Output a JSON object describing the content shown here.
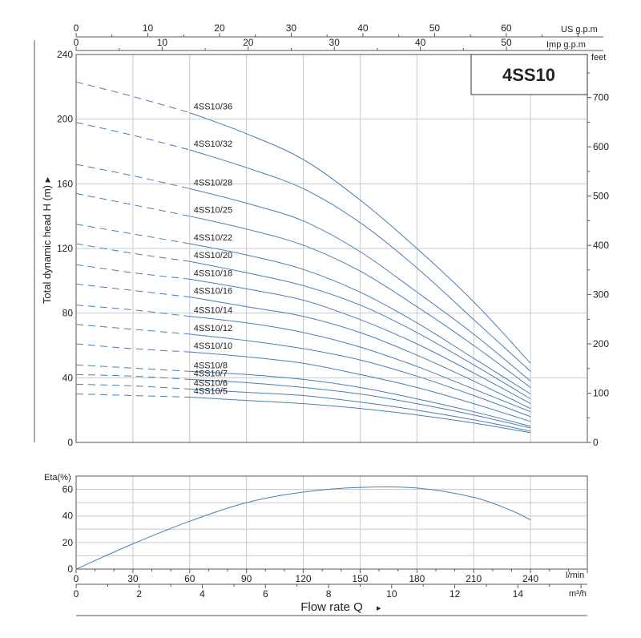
{
  "title": "4SS10",
  "colors": {
    "curve": "#4a7db3",
    "grid": "#c8c8c8",
    "axis": "#555555",
    "text": "#222222"
  },
  "axes": {
    "us_gpm_label": "US g.p.m",
    "imp_gpm_label": "Imp g.p.m",
    "feet_label": "feet",
    "head_label": "Total dynamic head H (m) ▸",
    "eta_label": "Eta(%)",
    "lmin_label": "l/min",
    "m3h_label": "m³/h",
    "flow_label": "Flow rate Q",
    "flow_arrow": "▸"
  },
  "chart_data": [
    {
      "type": "line",
      "id": "head",
      "title": "4SS10",
      "xlabel": "Flow rate Q",
      "ylabel": "Total dynamic head H (m)",
      "x_unit": "l/min",
      "xlim": [
        0,
        270
      ],
      "ylim": [
        0,
        240
      ],
      "x_ticks": [
        0,
        30,
        60,
        90,
        120,
        150,
        180,
        210,
        240
      ],
      "y_ticks": [
        0,
        40,
        80,
        120,
        160,
        200,
        240
      ],
      "grid": true,
      "secondary_axes": {
        "us_gpm": {
          "ticks": [
            0,
            10,
            20,
            30,
            40,
            50,
            60
          ],
          "max_at_270lmin": 71.3
        },
        "imp_gpm": {
          "ticks": [
            0,
            10,
            20,
            30,
            40,
            50
          ],
          "max_at_270lmin": 59.4
        },
        "feet": {
          "ticks": [
            0,
            100,
            200,
            300,
            400,
            500,
            600,
            700
          ],
          "max_at_240m": 787.4
        }
      },
      "dashed_until_x": 60,
      "series": [
        {
          "name": "4SS10/36",
          "x": [
            0,
            30,
            60,
            90,
            120,
            150,
            180,
            210,
            240
          ],
          "y": [
            223,
            214,
            204,
            191,
            175,
            150,
            120,
            87,
            49
          ]
        },
        {
          "name": "4SS10/32",
          "x": [
            0,
            30,
            60,
            90,
            120,
            150,
            180,
            210,
            240
          ],
          "y": [
            198,
            190,
            181,
            170,
            157,
            136,
            108,
            76,
            44
          ]
        },
        {
          "name": "4SS10/28",
          "x": [
            0,
            30,
            60,
            90,
            120,
            150,
            180,
            210,
            240
          ],
          "y": [
            172,
            165,
            157,
            148,
            137,
            118,
            93,
            67,
            38
          ]
        },
        {
          "name": "4SS10/25",
          "x": [
            0,
            30,
            60,
            90,
            120,
            150,
            180,
            210,
            240
          ],
          "y": [
            154,
            147,
            140,
            132,
            122,
            106,
            84,
            60,
            34
          ]
        },
        {
          "name": "4SS10/22",
          "x": [
            0,
            30,
            60,
            90,
            120,
            150,
            180,
            210,
            240
          ],
          "y": [
            135,
            129,
            123,
            116,
            107,
            93,
            74,
            52,
            30
          ]
        },
        {
          "name": "4SS10/20",
          "x": [
            0,
            30,
            60,
            90,
            120,
            150,
            180,
            210,
            240
          ],
          "y": [
            123,
            117,
            112,
            105,
            97,
            85,
            68,
            48,
            27
          ]
        },
        {
          "name": "4SS10/18",
          "x": [
            0,
            30,
            60,
            90,
            120,
            150,
            180,
            210,
            240
          ],
          "y": [
            110,
            105,
            101,
            95,
            88,
            76,
            61,
            43,
            24
          ]
        },
        {
          "name": "4SS10/16",
          "x": [
            0,
            30,
            60,
            90,
            120,
            150,
            180,
            210,
            240
          ],
          "y": [
            98,
            94,
            90,
            84,
            78,
            68,
            54,
            38,
            21
          ]
        },
        {
          "name": "4SS10/14",
          "x": [
            0,
            30,
            60,
            90,
            120,
            150,
            180,
            210,
            240
          ],
          "y": [
            85,
            82,
            78,
            74,
            68,
            59,
            47,
            33,
            19
          ]
        },
        {
          "name": "4SS10/12",
          "x": [
            0,
            30,
            60,
            90,
            120,
            150,
            180,
            210,
            240
          ],
          "y": [
            73,
            70,
            67,
            63,
            58,
            51,
            41,
            29,
            16
          ]
        },
        {
          "name": "4SS10/10",
          "x": [
            0,
            30,
            60,
            90,
            120,
            150,
            180,
            210,
            240
          ],
          "y": [
            61,
            58,
            56,
            53,
            49,
            42,
            34,
            24,
            13
          ]
        },
        {
          "name": "4SS10/8",
          "x": [
            0,
            30,
            60,
            90,
            120,
            150,
            180,
            210,
            240
          ],
          "y": [
            48,
            46,
            44,
            42,
            39,
            34,
            27,
            19,
            10
          ]
        },
        {
          "name": "4SS10/7",
          "x": [
            0,
            30,
            60,
            90,
            120,
            150,
            180,
            210,
            240
          ],
          "y": [
            42,
            41,
            39,
            37,
            34,
            30,
            24,
            17,
            9
          ]
        },
        {
          "name": "4SS10/6",
          "x": [
            0,
            30,
            60,
            90,
            120,
            150,
            180,
            210,
            240
          ],
          "y": [
            36,
            35,
            33,
            31,
            29,
            25,
            20,
            14,
            7
          ]
        },
        {
          "name": "4SS10/5",
          "x": [
            0,
            30,
            60,
            90,
            120,
            150,
            180,
            210,
            240
          ],
          "y": [
            30,
            29,
            28,
            26,
            24,
            21,
            17,
            12,
            6
          ]
        }
      ]
    },
    {
      "type": "line",
      "id": "efficiency",
      "ylabel": "Eta(%)",
      "xlabel": "Flow rate Q",
      "xlim": [
        0,
        270
      ],
      "ylim": [
        0,
        70
      ],
      "x_ticks": [
        0,
        30,
        60,
        90,
        120,
        150,
        180,
        210,
        240
      ],
      "x_ticks_label": "l/min",
      "m3h_ticks": [
        0,
        2,
        4,
        6,
        8,
        10,
        12,
        14
      ],
      "m3h_label": "m³/h",
      "y_ticks": [
        0,
        20,
        40,
        60
      ],
      "grid": true,
      "series": [
        {
          "name": "",
          "x": [
            0,
            30,
            60,
            90,
            120,
            150,
            180,
            210,
            230,
            240
          ],
          "y": [
            0,
            19,
            36,
            50,
            58,
            61.5,
            61,
            54,
            44,
            37
          ]
        }
      ]
    }
  ]
}
